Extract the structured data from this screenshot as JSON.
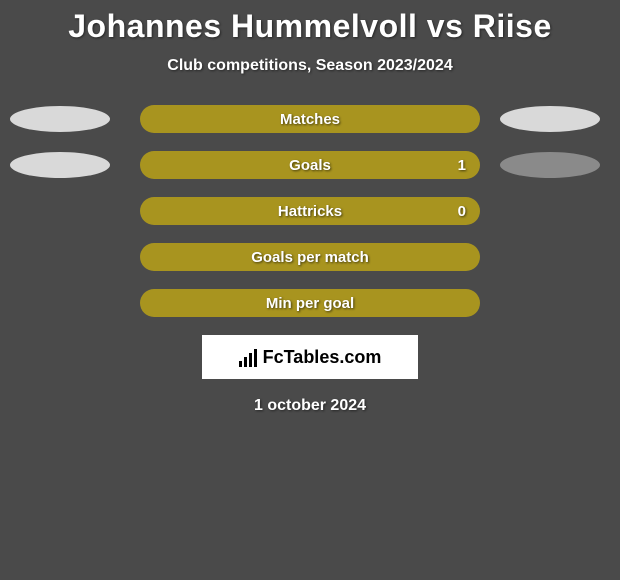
{
  "title": {
    "player1": "Johannes Hummelvoll",
    "vs": "vs",
    "player2": "Riise"
  },
  "subtitle": "Club competitions, Season 2023/2024",
  "background_color": "#4a4a4a",
  "text_color": "#ffffff",
  "stats": [
    {
      "label": "Matches",
      "value": "",
      "bar_color": "#a8941f",
      "ellipse_left_color": "#d9d9d9",
      "ellipse_right_color": "#d9d9d9",
      "show_ellipses": true
    },
    {
      "label": "Goals",
      "value": "1",
      "bar_color": "#a8941f",
      "ellipse_left_color": "#d9d9d9",
      "ellipse_right_color": "#8a8a8a",
      "show_ellipses": true
    },
    {
      "label": "Hattricks",
      "value": "0",
      "bar_color": "#a8941f",
      "ellipse_left_color": "",
      "ellipse_right_color": "",
      "show_ellipses": false
    },
    {
      "label": "Goals per match",
      "value": "",
      "bar_color": "#a8941f",
      "ellipse_left_color": "",
      "ellipse_right_color": "",
      "show_ellipses": false
    },
    {
      "label": "Min per goal",
      "value": "",
      "bar_color": "#a8941f",
      "ellipse_left_color": "",
      "ellipse_right_color": "",
      "show_ellipses": false
    }
  ],
  "logo": {
    "text": "FcTables.com",
    "background_color": "#ffffff",
    "text_color": "#000000"
  },
  "date": "1 october 2024"
}
